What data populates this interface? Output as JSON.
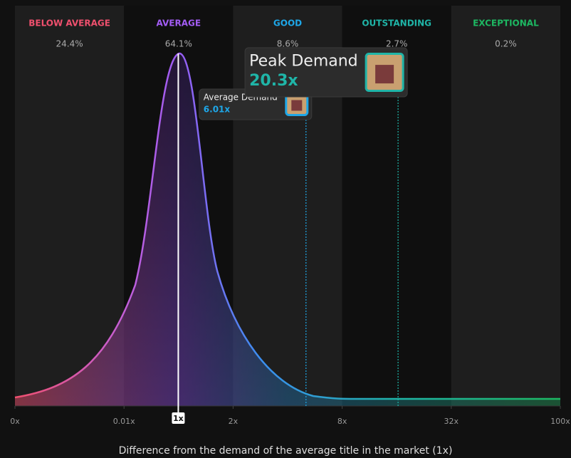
{
  "chart_data": {
    "type": "distribution",
    "x_label": "Difference from the demand of the average title in the market (1x)",
    "xlim": [
      0,
      100
    ],
    "xticks": [
      {
        "value": 0,
        "label": "0x"
      },
      {
        "value": 0.01,
        "label": "0.01x"
      },
      {
        "value": 2,
        "label": "2x"
      },
      {
        "value": 8,
        "label": "8x"
      },
      {
        "value": 32,
        "label": "32x"
      },
      {
        "value": 100,
        "label": "100x"
      }
    ],
    "bands": [
      {
        "name": "BELOW AVERAGE",
        "color": "#f0506e",
        "share": 24.4,
        "share_label": "24.4%"
      },
      {
        "name": "AVERAGE",
        "color": "#a35cf5",
        "share": 64.1,
        "share_label": "64.1%"
      },
      {
        "name": "GOOD",
        "color": "#1ea7e8",
        "share": 8.6,
        "share_label": "8.6%"
      },
      {
        "name": "OUTSTANDING",
        "color": "#1fb5a8",
        "share": 2.7,
        "share_label": "2.7%"
      },
      {
        "name": "EXCEPTIONAL",
        "color": "#1db862",
        "share": 0.2,
        "share_label": "0.2%"
      }
    ],
    "reference": {
      "value": 1,
      "label": "1x"
    },
    "markers": [
      {
        "label": "Average Demand",
        "value": 6.01,
        "value_label": "6.01x",
        "color": "#1ea7e8"
      },
      {
        "label": "Peak Demand",
        "value": 20.3,
        "value_label": "20.3x",
        "color": "#1fb5a8"
      }
    ]
  }
}
